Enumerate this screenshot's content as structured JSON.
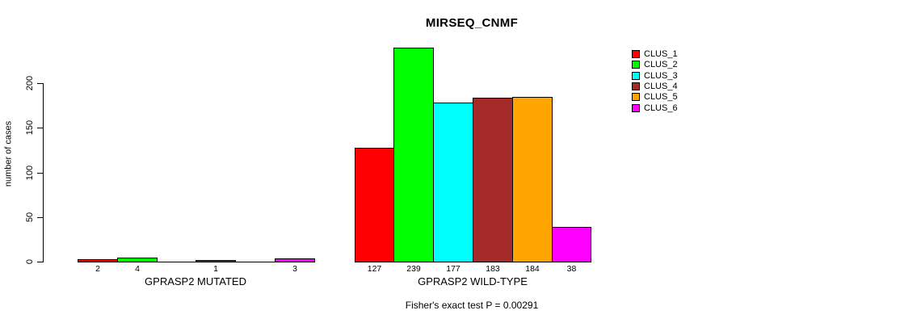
{
  "chart_data": {
    "type": "bar",
    "title": "MIRSEQ_CNMF",
    "ylabel": "number of cases",
    "annotation": "Fisher's exact test P = 0.00291",
    "yticks": [
      0,
      50,
      100,
      150,
      200
    ],
    "ylim": [
      0,
      250
    ],
    "grid": false,
    "legend_position": "right",
    "background": "#ffffff",
    "axis_color": "#000000",
    "clusters": [
      "CLUS_1",
      "CLUS_2",
      "CLUS_3",
      "CLUS_4",
      "CLUS_5",
      "CLUS_6"
    ],
    "colors": [
      "#ff0000",
      "#00ff00",
      "#00ffff",
      "#a52a2a",
      "#ffa500",
      "#ff00ff"
    ],
    "categories": [
      "GPRASP2 MUTATED",
      "GPRASP2 WILD-TYPE"
    ],
    "groups": [
      {
        "label": "GPRASP2 MUTATED",
        "values": [
          2,
          4,
          0,
          1,
          0,
          3
        ],
        "bar_labels": [
          "2",
          "4",
          "",
          "1",
          "",
          "3"
        ]
      },
      {
        "label": "GPRASP2 WILD-TYPE",
        "values": [
          127,
          239,
          177,
          183,
          184,
          38
        ],
        "bar_labels": [
          "127",
          "239",
          "177",
          "183",
          "184",
          "38"
        ]
      }
    ]
  }
}
